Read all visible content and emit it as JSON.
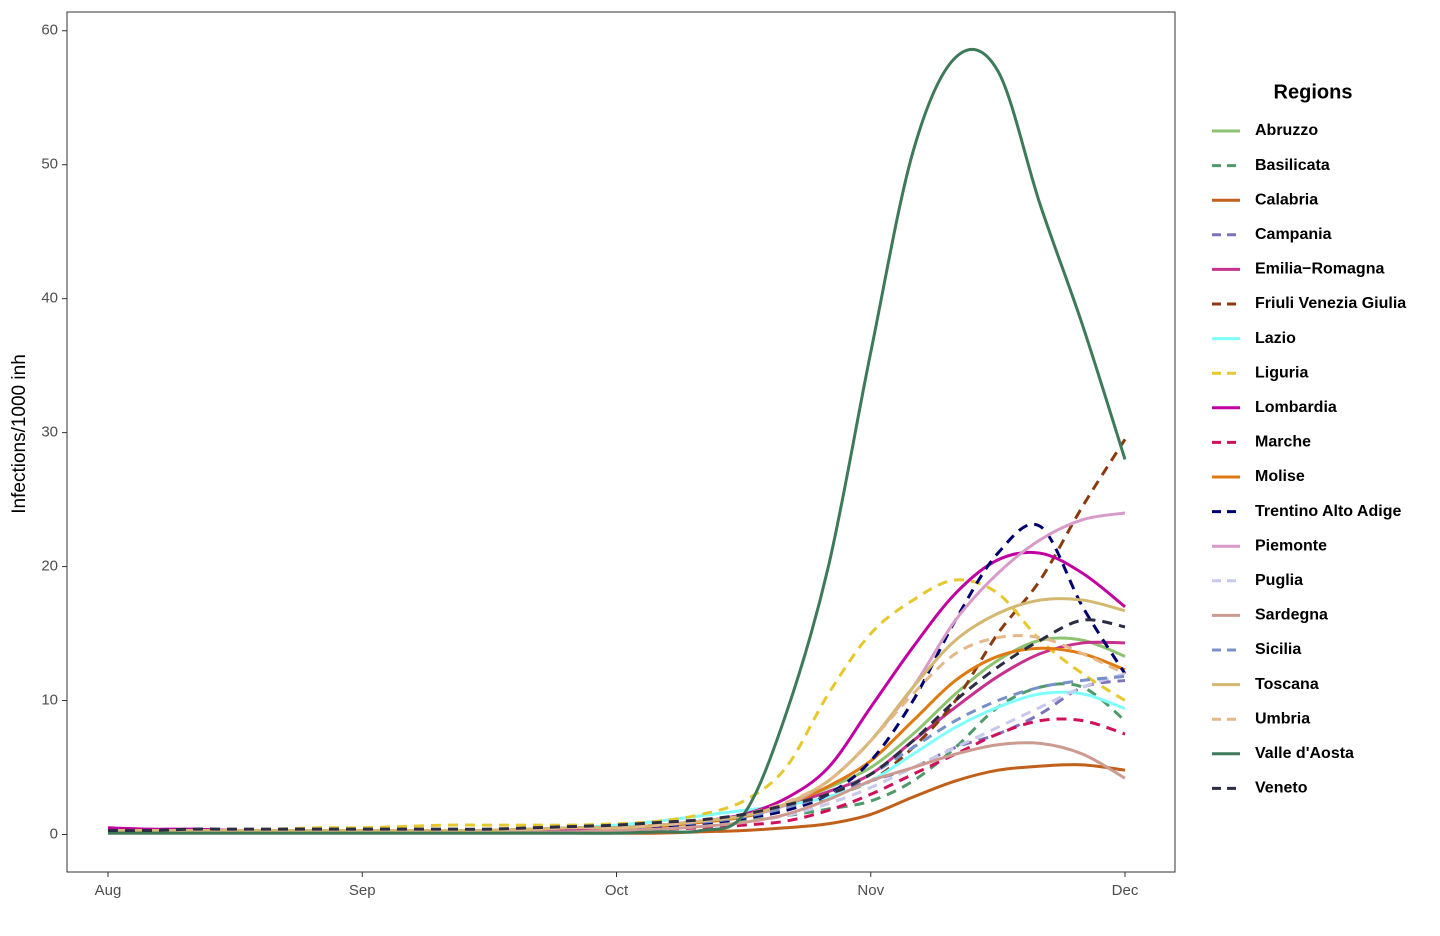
{
  "chart_data": {
    "type": "line",
    "y_label": "Infections/1000 inh",
    "legend_title": "Regions",
    "legend": "right",
    "grid": false,
    "categories": [
      "Aug",
      null,
      null,
      null,
      null,
      null,
      "Sep",
      null,
      null,
      null,
      null,
      null,
      "Oct",
      null,
      null,
      null,
      null,
      null,
      "Nov",
      null,
      null,
      null,
      null,
      null,
      "Dec"
    ],
    "ylim": [
      -2.8,
      61.4
    ],
    "yticks": [
      0,
      10,
      20,
      30,
      40,
      50,
      60
    ],
    "series": [
      {
        "name": "Abruzzo",
        "color": "#8dc26f",
        "dashed": false,
        "values": [
          0.3,
          0.3,
          0.3,
          0.3,
          0.3,
          0.3,
          0.3,
          0.3,
          0.3,
          0.3,
          0.4,
          0.5,
          0.5,
          0.7,
          1.0,
          1.4,
          2.2,
          3.5,
          5,
          7.5,
          10.5,
          13,
          14.5,
          14.5,
          13.3
        ]
      },
      {
        "name": "Basilicata",
        "color": "#4e9a6a",
        "dashed": true,
        "values": [
          0.2,
          0.2,
          0.2,
          0.2,
          0.2,
          0.2,
          0.2,
          0.2,
          0.2,
          0.2,
          0.3,
          0.3,
          0.4,
          0.5,
          0.7,
          1.0,
          1.4,
          1.9,
          2.5,
          4,
          6.5,
          9.5,
          11,
          11,
          8.5
        ]
      },
      {
        "name": "Calabria",
        "color": "#c0601a",
        "dashed": false,
        "values": [
          0.1,
          0.1,
          0.1,
          0.1,
          0.1,
          0.1,
          0.1,
          0.1,
          0.1,
          0.1,
          0.1,
          0.1,
          0.1,
          0.1,
          0.2,
          0.3,
          0.5,
          0.8,
          1.5,
          2.8,
          4,
          4.8,
          5.1,
          5.2,
          4.8
        ]
      },
      {
        "name": "Campania",
        "color": "#7b74b8",
        "dashed": true,
        "values": [
          0.2,
          0.2,
          0.2,
          0.2,
          0.2,
          0.2,
          0.2,
          0.2,
          0.2,
          0.2,
          0.3,
          0.3,
          0.4,
          0.6,
          0.9,
          1.4,
          2,
          3,
          4,
          5,
          6.5,
          7.5,
          9,
          11,
          11.5
        ]
      },
      {
        "name": "Emilia−Romagna",
        "color": "#c8308e",
        "dashed": false,
        "values": [
          0.3,
          0.3,
          0.3,
          0.3,
          0.3,
          0.3,
          0.3,
          0.3,
          0.3,
          0.3,
          0.4,
          0.5,
          0.5,
          0.7,
          1.0,
          1.4,
          2.2,
          3.2,
          4.5,
          7,
          9.5,
          11.8,
          13.5,
          14.3,
          14.3
        ]
      },
      {
        "name": "Friuli Venezia Giulia",
        "color": "#8b3a0f",
        "dashed": true,
        "values": [
          0.2,
          0.2,
          0.2,
          0.2,
          0.2,
          0.2,
          0.2,
          0.2,
          0.2,
          0.2,
          0.2,
          0.2,
          0.3,
          0.5,
          0.8,
          1.2,
          1.8,
          2.8,
          4,
          6.5,
          10,
          15,
          19,
          24.5,
          29.5
        ]
      },
      {
        "name": "Lazio",
        "color": "#80ffff",
        "dashed": false,
        "values": [
          0.3,
          0.3,
          0.3,
          0.3,
          0.3,
          0.3,
          0.3,
          0.3,
          0.3,
          0.3,
          0.4,
          0.5,
          0.7,
          1.0,
          1.4,
          1.8,
          2.2,
          2.8,
          4,
          6,
          8,
          9.5,
          10.5,
          10.5,
          9.4
        ]
      },
      {
        "name": "Liguria",
        "color": "#e6c82e",
        "dashed": true,
        "values": [
          0.3,
          0.3,
          0.3,
          0.3,
          0.4,
          0.5,
          0.5,
          0.6,
          0.7,
          0.7,
          0.7,
          0.7,
          0.8,
          1.0,
          1.5,
          2.5,
          5,
          10.5,
          15,
          17.5,
          19,
          18,
          14.5,
          12,
          10
        ]
      },
      {
        "name": "Lombardia",
        "color": "#c000a0",
        "dashed": false,
        "values": [
          0.5,
          0.4,
          0.4,
          0.3,
          0.3,
          0.3,
          0.3,
          0.3,
          0.3,
          0.3,
          0.3,
          0.4,
          0.5,
          0.7,
          1.0,
          1.5,
          2.7,
          5,
          9.5,
          14,
          18,
          20.5,
          21,
          19.5,
          17
        ]
      },
      {
        "name": "Marche",
        "color": "#d0105a",
        "dashed": true,
        "values": [
          0.2,
          0.2,
          0.2,
          0.2,
          0.2,
          0.2,
          0.2,
          0.2,
          0.2,
          0.2,
          0.2,
          0.2,
          0.3,
          0.4,
          0.5,
          0.7,
          1.0,
          1.8,
          3,
          4.5,
          6,
          7.5,
          8.5,
          8.5,
          7.5
        ]
      },
      {
        "name": "Molise",
        "color": "#e07a10",
        "dashed": false,
        "values": [
          0.3,
          0.3,
          0.3,
          0.3,
          0.3,
          0.3,
          0.3,
          0.3,
          0.3,
          0.3,
          0.4,
          0.5,
          0.5,
          0.6,
          0.9,
          1.3,
          2.2,
          3.6,
          5.5,
          8.5,
          11.5,
          13.3,
          13.9,
          13.5,
          12.3
        ]
      },
      {
        "name": "Trentino Alto Adige",
        "color": "#00006e",
        "dashed": true,
        "values": [
          0.2,
          0.2,
          0.2,
          0.2,
          0.2,
          0.2,
          0.2,
          0.2,
          0.2,
          0.2,
          0.2,
          0.2,
          0.3,
          0.5,
          0.8,
          1.2,
          1.8,
          3,
          5.5,
          10,
          16,
          21,
          23,
          17,
          12
        ]
      },
      {
        "name": "Piemonte",
        "color": "#d89ac8",
        "dashed": false,
        "values": [
          0.3,
          0.3,
          0.3,
          0.3,
          0.3,
          0.3,
          0.3,
          0.3,
          0.3,
          0.3,
          0.4,
          0.5,
          0.5,
          0.7,
          1.0,
          1.4,
          2.2,
          4,
          7,
          11,
          16,
          19.5,
          22,
          23.5,
          24
        ]
      },
      {
        "name": "Puglia",
        "color": "#c8c8ec",
        "dashed": true,
        "values": [
          0.2,
          0.2,
          0.2,
          0.2,
          0.2,
          0.2,
          0.2,
          0.2,
          0.2,
          0.2,
          0.2,
          0.2,
          0.3,
          0.4,
          0.6,
          0.9,
          1.4,
          2.3,
          3.5,
          5,
          6.5,
          8,
          9.5,
          11,
          12
        ]
      },
      {
        "name": "Sardegna",
        "color": "#cc9a90",
        "dashed": false,
        "values": [
          0.2,
          0.2,
          0.2,
          0.2,
          0.2,
          0.2,
          0.2,
          0.2,
          0.2,
          0.2,
          0.2,
          0.2,
          0.3,
          0.4,
          0.6,
          0.9,
          1.5,
          2.6,
          4,
          5,
          6,
          6.7,
          6.8,
          6,
          4.2
        ]
      },
      {
        "name": "Sicilia",
        "color": "#7890c8",
        "dashed": true,
        "values": [
          0.3,
          0.3,
          0.3,
          0.3,
          0.3,
          0.3,
          0.3,
          0.3,
          0.3,
          0.3,
          0.4,
          0.5,
          0.5,
          0.7,
          0.9,
          1.3,
          2,
          3,
          4.5,
          6.5,
          8.5,
          10,
          11,
          11.5,
          11.8
        ]
      },
      {
        "name": "Toscana",
        "color": "#d4b870",
        "dashed": false,
        "values": [
          0.3,
          0.3,
          0.3,
          0.3,
          0.3,
          0.3,
          0.3,
          0.3,
          0.3,
          0.3,
          0.4,
          0.5,
          0.5,
          0.7,
          1.0,
          1.4,
          2.3,
          4,
          7,
          11,
          14.5,
          16.5,
          17.5,
          17.5,
          16.7
        ]
      },
      {
        "name": "Umbria",
        "color": "#e4b888",
        "dashed": true,
        "values": [
          0.3,
          0.3,
          0.3,
          0.3,
          0.3,
          0.3,
          0.3,
          0.3,
          0.3,
          0.3,
          0.4,
          0.5,
          0.5,
          0.7,
          1.0,
          1.5,
          2.4,
          4,
          7,
          10.5,
          13.5,
          14.7,
          14.7,
          13.5,
          12
        ]
      },
      {
        "name": "Valle d'Aosta",
        "color": "#3d7a5a",
        "dashed": false,
        "values": [
          0.1,
          0.1,
          0.1,
          0.1,
          0.1,
          0.1,
          0.1,
          0.1,
          0.1,
          0.1,
          0.1,
          0.1,
          0.1,
          0.2,
          0.3,
          1.5,
          9,
          20,
          36,
          51,
          58,
          57,
          47,
          38,
          28
        ]
      },
      {
        "name": "Veneto",
        "color": "#2c2c44",
        "dashed": true,
        "values": [
          0.3,
          0.3,
          0.4,
          0.4,
          0.4,
          0.4,
          0.4,
          0.4,
          0.4,
          0.4,
          0.5,
          0.6,
          0.7,
          0.9,
          1.1,
          1.5,
          2.2,
          3,
          4.5,
          7,
          10,
          12.5,
          14.5,
          16,
          15.5
        ]
      }
    ]
  }
}
